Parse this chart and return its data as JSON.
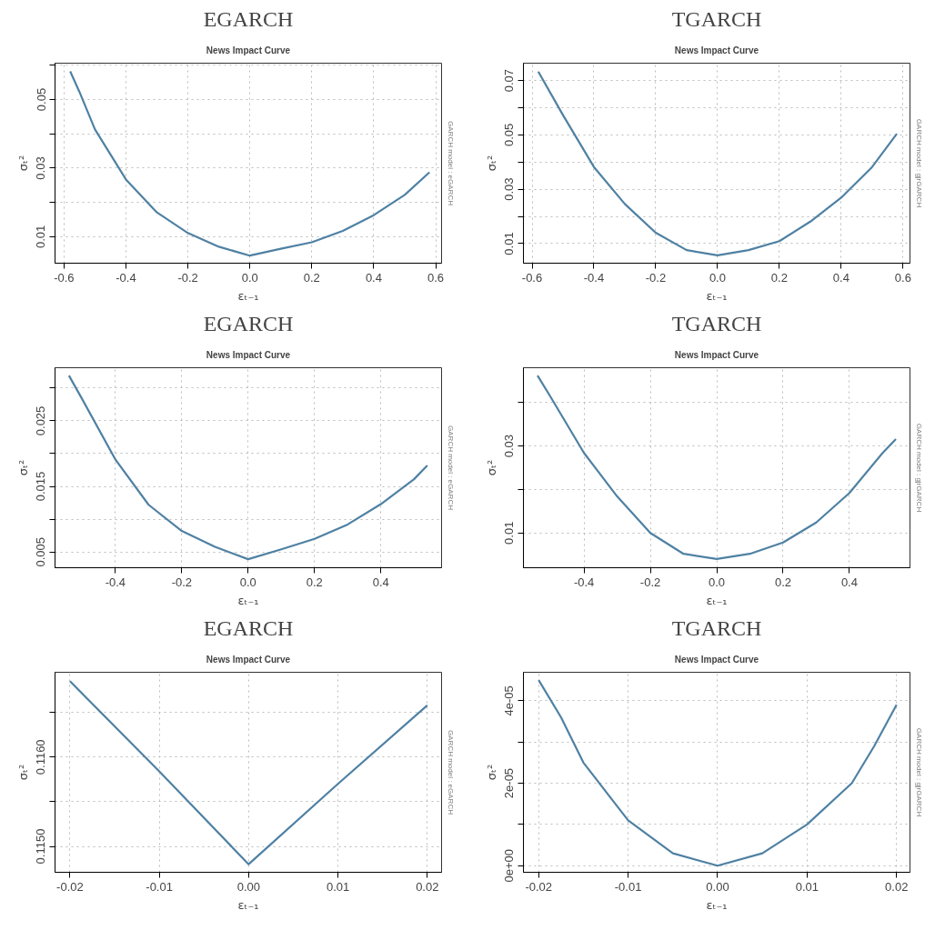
{
  "chart_data": [
    {
      "type": "line",
      "title": "EGARCH",
      "subtitle": "News Impact Curve",
      "xlabel": "εₜ₋₁",
      "ylabel": "σₜ²",
      "grid": true,
      "line_style": "solid",
      "annotations": [
        "GARCH model : eGARCH"
      ],
      "x": [
        -0.58,
        -0.55,
        -0.5,
        -0.45,
        -0.4,
        -0.3,
        -0.2,
        -0.1,
        0,
        0.1,
        0.2,
        0.3,
        0.4,
        0.5,
        0.58
      ],
      "series": [
        {
          "color": "#4f81a3",
          "values": [
            0.0582,
            0.0522,
            0.0413,
            0.034,
            0.0267,
            0.0171,
            0.0111,
            0.0071,
            0.0045,
            0.0065,
            0.0084,
            0.0117,
            0.0163,
            0.0222,
            0.0288
          ]
        }
      ],
      "xlim": [
        -0.629,
        0.619
      ],
      "ylim": [
        0.0023,
        0.0606
      ],
      "xticks": [
        -0.6,
        -0.4,
        -0.2,
        {
          "value": 0,
          "label": "0.0"
        },
        0.2,
        0.4,
        0.6
      ],
      "yticks": [
        0.01,
        {
          "value": 0.02,
          "label": null
        },
        0.03,
        {
          "value": 0.04,
          "label": null
        },
        0.05,
        {
          "value": 0.06,
          "label": null
        }
      ]
    },
    {
      "type": "line",
      "title": "TGARCH",
      "subtitle": "News Impact Curve",
      "xlabel": "εₜ₋₁",
      "ylabel": "σₜ²",
      "grid": true,
      "line_style": "solid",
      "annotations": [
        "GARCH model : gjrGARCH"
      ],
      "x": [
        -0.58,
        -0.5,
        -0.4,
        -0.3,
        -0.2,
        -0.1,
        0,
        0.1,
        0.2,
        0.3,
        0.4,
        0.5,
        0.58
      ],
      "series": [
        {
          "color": "#4f81a3",
          "values": [
            0.0733,
            0.0573,
            0.0382,
            0.0246,
            0.014,
            0.0076,
            0.0057,
            0.0076,
            0.0109,
            0.0181,
            0.0269,
            0.0382,
            0.0504
          ]
        }
      ],
      "xlim": [
        -0.628,
        0.6225
      ],
      "ylim": [
        0.0028,
        0.0764
      ],
      "xticks": [
        -0.6,
        -0.4,
        -0.2,
        {
          "value": 0,
          "label": "0.0"
        },
        0.2,
        0.4,
        0.6
      ],
      "yticks": [
        0.01,
        {
          "value": 0.02,
          "label": null
        },
        0.03,
        {
          "value": 0.04,
          "label": null
        },
        0.05,
        {
          "value": 0.06,
          "label": null
        },
        0.07
      ]
    },
    {
      "type": "line",
      "title": "EGARCH",
      "subtitle": "News Impact Curve",
      "xlabel": "εₜ₋₁",
      "ylabel": "σₜ²",
      "grid": true,
      "line_style": "solid",
      "annotations": [
        "GARCH model : eGARCH"
      ],
      "x": [
        -0.54,
        -0.5,
        -0.4,
        -0.3,
        -0.2,
        -0.1,
        0,
        0.1,
        0.2,
        0.3,
        0.4,
        0.5,
        0.54
      ],
      "series": [
        {
          "color": "#4f81a3",
          "values": [
            0.0319,
            0.0283,
            0.0191,
            0.0122,
            0.0082,
            0.0058,
            0.0039,
            0.0054,
            0.007,
            0.0092,
            0.0123,
            0.0161,
            0.0182
          ]
        }
      ],
      "xlim": [
        -0.582,
        0.583
      ],
      "ylim": [
        0.0026,
        0.0331
      ],
      "xticks": [
        -0.4,
        -0.2,
        {
          "value": 0,
          "label": "0.0"
        },
        0.2,
        0.4
      ],
      "yticks": [
        0.005,
        {
          "value": 0.01,
          "label": null
        },
        0.015,
        {
          "value": 0.02,
          "label": null
        },
        0.025,
        {
          "value": 0.03,
          "label": null
        }
      ]
    },
    {
      "type": "line",
      "title": "TGARCH",
      "subtitle": "News Impact Curve",
      "xlabel": "εₜ₋₁",
      "ylabel": "σₜ²",
      "grid": true,
      "line_style": "solid",
      "annotations": [
        "GARCH model : gjrGARCH"
      ],
      "x": [
        -0.54,
        -0.5,
        -0.4,
        -0.3,
        -0.2,
        -0.1,
        0,
        0.1,
        0.2,
        0.3,
        0.4,
        0.5,
        0.54
      ],
      "series": [
        {
          "color": "#4f81a3",
          "values": [
            0.0462,
            0.0412,
            0.0284,
            0.0184,
            0.01,
            0.0052,
            0.004,
            0.0052,
            0.0078,
            0.0124,
            0.0192,
            0.0284,
            0.0316
          ]
        }
      ],
      "xlim": [
        -0.5825,
        0.5825
      ],
      "ylim": [
        0.002,
        0.048
      ],
      "xticks": [
        -0.4,
        -0.2,
        {
          "value": 0,
          "label": "0.0"
        },
        0.2,
        0.4
      ],
      "yticks": [
        0.01,
        {
          "value": 0.02,
          "label": null
        },
        0.03,
        {
          "value": 0.04,
          "label": null
        }
      ]
    },
    {
      "type": "line",
      "title": "EGARCH",
      "subtitle": "News Impact Curve",
      "xlabel": "εₜ₋₁",
      "ylabel": "σₜ²",
      "grid": true,
      "line_style": "solid",
      "annotations": [
        "GARCH model : eGARCH"
      ],
      "x": [
        -0.02,
        -0.01,
        0,
        0.01,
        0.02
      ],
      "series": [
        {
          "color": "#4f81a3",
          "values": [
            0.11685,
            0.11584,
            0.1148,
            0.1157,
            0.11658
          ]
        }
      ],
      "xlim": [
        -0.02167,
        0.0216
      ],
      "ylim": [
        0.11471,
        0.11695
      ],
      "xticks": [
        {
          "value": -0.02,
          "label": "-0.02"
        },
        {
          "value": -0.01,
          "label": "-0.01"
        },
        {
          "value": 0,
          "label": "0.00"
        },
        {
          "value": 0.01,
          "label": "0.01"
        },
        {
          "value": 0.02,
          "label": "0.02"
        }
      ],
      "yticks": [
        {
          "value": 0.115,
          "label": "0.1150"
        },
        {
          "value": 0.1155,
          "label": null
        },
        {
          "value": 0.116,
          "label": "0.1160"
        },
        {
          "value": 0.1165,
          "label": null
        }
      ]
    },
    {
      "type": "line",
      "title": "TGARCH",
      "subtitle": "News Impact Curve",
      "xlabel": "εₜ₋₁",
      "ylabel": "σₜ²",
      "grid": true,
      "line_style": "solid",
      "annotations": [
        "GARCH model : gjrGARCH"
      ],
      "x": [
        -0.02,
        -0.0175,
        -0.015,
        -0.01,
        -0.005,
        0,
        0.005,
        0.01,
        0.015,
        0.0175,
        0.02
      ],
      "series": [
        {
          "color": "#4f81a3",
          "values": [
            4.5e-05,
            3.6e-05,
            2.5e-05,
            1.1e-05,
            3e-06,
            0,
            3e-06,
            1e-05,
            2e-05,
            2.9e-05,
            3.9e-05
          ]
        }
      ],
      "xlim": [
        -0.0217,
        0.0215
      ],
      "ylim": [
        -1.6e-06,
        4.69e-05
      ],
      "xticks": [
        {
          "value": -0.02,
          "label": "-0.02"
        },
        {
          "value": -0.01,
          "label": "-0.01"
        },
        {
          "value": 0,
          "label": "0.00"
        },
        {
          "value": 0.01,
          "label": "0.01"
        },
        {
          "value": 0.02,
          "label": "0.02"
        }
      ],
      "yticks": [
        {
          "value": 0,
          "label": "0e+00"
        },
        {
          "value": 1e-05,
          "label": null
        },
        {
          "value": 2e-05,
          "label": "2e-05"
        },
        {
          "value": 3e-05,
          "label": null
        },
        {
          "value": 4e-05,
          "label": "4e-05"
        }
      ]
    }
  ]
}
